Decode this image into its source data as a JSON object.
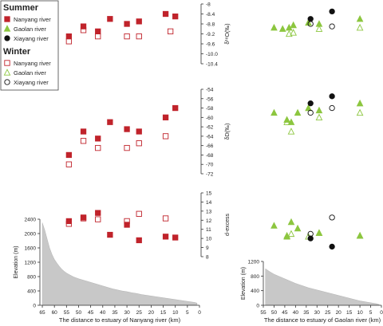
{
  "colors": {
    "nanyang": "#c0232b",
    "gaolan": "#8cc63f",
    "xiayang": "#111111",
    "elevation_fill": "#c8c8c8",
    "axis": "#333333"
  },
  "legend": {
    "summer_title": "Summer",
    "winter_title": "Winter",
    "summer": [
      {
        "label": "Nanyang river",
        "marker": "filled-square",
        "color": "#c0232b"
      },
      {
        "label": "Gaolan river",
        "marker": "filled-triangle",
        "color": "#8cc63f"
      },
      {
        "label": "Xiayang river",
        "marker": "filled-circle",
        "color": "#111111"
      }
    ],
    "winter": [
      {
        "label": "Nanyang river",
        "marker": "open-square",
        "color": "#c0232b"
      },
      {
        "label": "Gaolan river",
        "marker": "open-triangle",
        "color": "#8cc63f"
      },
      {
        "label": "Xiayang river",
        "marker": "open-circle",
        "color": "#111111"
      }
    ]
  },
  "chart_data": [
    {
      "id": "d18o",
      "type": "scatter",
      "ylabel": "δ¹⁸O(‰)",
      "ylim": [
        -10.4,
        -8.0
      ],
      "yticks": [
        "-8",
        "-8.4",
        "-8.8",
        "-9.2",
        "-9.6",
        "-10.0",
        "-10.4"
      ],
      "series": [
        {
          "name": "Nanyang river",
          "season": "Summer",
          "river": "nanyang",
          "x": [
            54,
            48,
            42,
            37,
            30,
            25,
            14,
            10
          ],
          "y": [
            -9.3,
            -8.9,
            -9.1,
            -8.6,
            -8.8,
            -8.7,
            -8.4,
            -8.5
          ]
        },
        {
          "name": "Nanyang river",
          "season": "Winter",
          "river": "nanyang",
          "x": [
            54,
            48,
            42,
            30,
            25,
            12
          ],
          "y": [
            -9.5,
            -9.05,
            -9.3,
            -9.3,
            -9.3,
            -9.1
          ]
        },
        {
          "name": "Gaolan river",
          "season": "Summer",
          "river": "gaolan",
          "x": [
            50,
            46,
            43,
            41,
            34,
            29,
            10
          ],
          "y": [
            -8.95,
            -9.0,
            -8.95,
            -8.85,
            -8.75,
            -8.8,
            -8.6
          ]
        },
        {
          "name": "Gaolan river",
          "season": "Winter",
          "river": "gaolan",
          "x": [
            43,
            41,
            29,
            10
          ],
          "y": [
            -9.2,
            -9.15,
            -9.0,
            -8.95
          ]
        },
        {
          "name": "Xiayang river",
          "season": "Summer",
          "river": "xiayang",
          "x": [
            33,
            23
          ],
          "y": [
            -8.6,
            -8.3
          ]
        },
        {
          "name": "Xiayang river",
          "season": "Winter",
          "river": "xiayang",
          "x": [
            33,
            23
          ],
          "y": [
            -8.8,
            -8.9
          ]
        }
      ]
    },
    {
      "id": "dd",
      "type": "scatter",
      "ylabel": "δD(‰)",
      "ylim": [
        -72,
        -54
      ],
      "yticks": [
        "-54",
        "-56",
        "-58",
        "-60",
        "-62",
        "-64",
        "-66",
        "-68",
        "-70",
        "-72"
      ],
      "series": [
        {
          "name": "Nanyang river",
          "season": "Summer",
          "river": "nanyang",
          "x": [
            54,
            48,
            42,
            37,
            30,
            25,
            14,
            10
          ],
          "y": [
            -68,
            -63,
            -64.5,
            -61,
            -62.5,
            -63,
            -60,
            -58
          ]
        },
        {
          "name": "Nanyang river",
          "season": "Winter",
          "river": "nanyang",
          "x": [
            54,
            48,
            42,
            30,
            25,
            14
          ],
          "y": [
            -70,
            -65,
            -66.5,
            -66.5,
            -65.5,
            -64
          ]
        },
        {
          "name": "Gaolan river",
          "season": "Summer",
          "river": "gaolan",
          "x": [
            50,
            44,
            42,
            39,
            34,
            29,
            10
          ],
          "y": [
            -59,
            -60.5,
            -61,
            -59,
            -58,
            -58.5,
            -57
          ]
        },
        {
          "name": "Gaolan river",
          "season": "Winter",
          "river": "gaolan",
          "x": [
            44,
            42,
            29,
            10
          ],
          "y": [
            -61,
            -63,
            -60,
            -59
          ]
        },
        {
          "name": "Xiayang river",
          "season": "Summer",
          "river": "xiayang",
          "x": [
            33,
            23
          ],
          "y": [
            -57,
            -55.5
          ]
        },
        {
          "name": "Xiayang river",
          "season": "Winter",
          "river": "xiayang",
          "x": [
            33,
            23
          ],
          "y": [
            -59,
            -58
          ]
        }
      ]
    },
    {
      "id": "dexcess",
      "type": "scatter",
      "ylabel": "d-excess",
      "ylim": [
        8,
        15
      ],
      "yticks": [
        "15",
        "14",
        "13",
        "12",
        "11",
        "10",
        "9",
        "8"
      ],
      "series": [
        {
          "name": "Nanyang river",
          "season": "Summer",
          "river": "nanyang",
          "x": [
            54,
            48,
            42,
            37,
            30,
            25,
            14,
            10
          ],
          "y": [
            11.9,
            12.3,
            12.8,
            10.4,
            11.5,
            9.8,
            10.2,
            10.1
          ]
        },
        {
          "name": "Nanyang river",
          "season": "Winter",
          "river": "nanyang",
          "x": [
            54,
            48,
            42,
            30,
            25,
            14
          ],
          "y": [
            11.6,
            12.2,
            12.1,
            11.9,
            12.7,
            12.2
          ]
        },
        {
          "name": "Gaolan river",
          "season": "Summer",
          "river": "gaolan",
          "x": [
            50,
            44,
            42,
            39,
            29,
            10
          ],
          "y": [
            11.4,
            10.2,
            11.8,
            11.1,
            10.6,
            10.3
          ]
        },
        {
          "name": "Gaolan river",
          "season": "Winter",
          "river": "gaolan",
          "x": [
            44,
            42,
            34,
            29,
            10
          ],
          "y": [
            10.3,
            10.5,
            10.2,
            10.6,
            10.3
          ]
        },
        {
          "name": "Xiayang river",
          "season": "Summer",
          "river": "xiayang",
          "x": [
            33,
            23
          ],
          "y": [
            10.0,
            9.1
          ]
        },
        {
          "name": "Xiayang river",
          "season": "Winter",
          "river": "xiayang",
          "x": [
            33,
            23
          ],
          "y": [
            10.5,
            12.3
          ]
        }
      ]
    },
    {
      "id": "elev_nanyang",
      "type": "area",
      "ylabel": "Elevation (m)",
      "xlabel": "The distance to estuary of Nanyang river (km)",
      "xlim": [
        66,
        0
      ],
      "ylim": [
        0,
        2400
      ],
      "xticks": [
        "65",
        "60",
        "55",
        "50",
        "45",
        "40",
        "35",
        "30",
        "25",
        "20",
        "15",
        "10",
        "5",
        "0"
      ],
      "yticks": [
        "2400",
        "2000",
        "1600",
        "1200",
        "800",
        "400",
        "0"
      ],
      "x": [
        65,
        64,
        63,
        62,
        61,
        60,
        59,
        58,
        57,
        56,
        55,
        54,
        52,
        50,
        48,
        46,
        44,
        42,
        40,
        38,
        36,
        34,
        32,
        30,
        28,
        26,
        24,
        22,
        20,
        18,
        16,
        14,
        12,
        10,
        8,
        6,
        4,
        2,
        1
      ],
      "y": [
        2300,
        2100,
        1850,
        1600,
        1420,
        1280,
        1180,
        1090,
        1010,
        950,
        900,
        860,
        790,
        740,
        700,
        660,
        620,
        580,
        540,
        500,
        460,
        430,
        400,
        380,
        350,
        330,
        300,
        280,
        260,
        240,
        220,
        200,
        180,
        160,
        140,
        120,
        100,
        80,
        60
      ]
    },
    {
      "id": "elev_gaolan",
      "type": "area",
      "ylabel": "Elevation (m)",
      "xlabel": "The distance to estuary of Gaolan river (km)",
      "xlim": [
        55,
        0
      ],
      "ylim": [
        0,
        1200
      ],
      "xticks": [
        "55",
        "50",
        "45",
        "40",
        "35",
        "30",
        "25",
        "20",
        "15",
        "10",
        "5",
        "0"
      ],
      "yticks": [
        "1200",
        "800",
        "400",
        "0"
      ],
      "x": [
        54,
        52,
        50,
        48,
        46,
        44,
        42,
        40,
        38,
        36,
        34,
        32,
        30,
        28,
        26,
        24,
        22,
        20,
        18,
        16,
        14,
        12,
        10,
        8,
        6,
        4,
        2,
        1
      ],
      "y": [
        1000,
        920,
        850,
        800,
        750,
        700,
        650,
        600,
        560,
        520,
        480,
        450,
        420,
        390,
        360,
        330,
        300,
        270,
        240,
        210,
        180,
        150,
        120,
        100,
        80,
        60,
        40,
        20
      ]
    }
  ]
}
